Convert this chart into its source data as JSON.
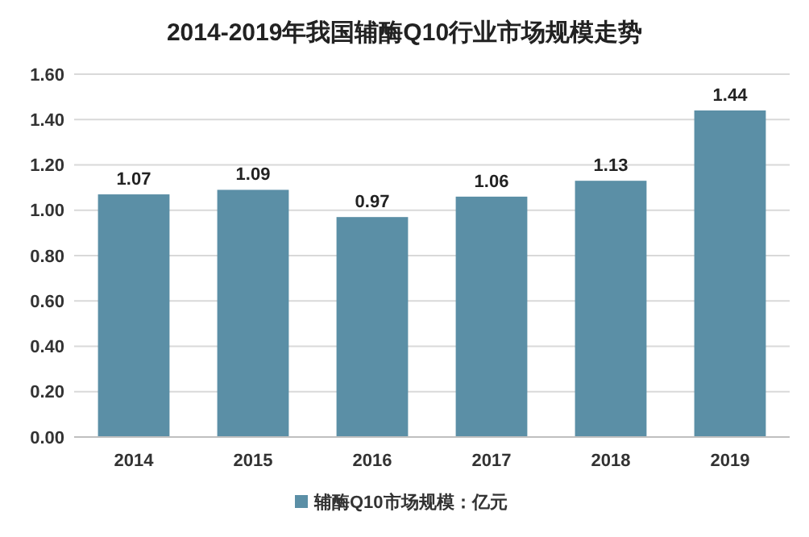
{
  "chart_data": {
    "type": "bar",
    "title": "2014-2019年我国辅酶Q10行业市场规模走势",
    "categories": [
      "2014",
      "2015",
      "2016",
      "2017",
      "2018",
      "2019"
    ],
    "series": [
      {
        "name": "辅酶Q10市场规模：亿元",
        "color": "#5b8fa6",
        "values": [
          1.07,
          1.09,
          0.97,
          1.06,
          1.13,
          1.44
        ]
      }
    ],
    "ylim": [
      0,
      1.6
    ],
    "yticks": [
      {
        "value": 0,
        "label": "0.00"
      },
      {
        "value": 0.2,
        "label": "0.20"
      },
      {
        "value": 0.4,
        "label": "0.40"
      },
      {
        "value": 0.6,
        "label": "0.60"
      },
      {
        "value": 0.8,
        "label": "0.80"
      },
      {
        "value": 1.0,
        "label": "1.00"
      },
      {
        "value": 1.2,
        "label": "1.20"
      },
      {
        "value": 1.4,
        "label": "1.40"
      },
      {
        "value": 1.6,
        "label": "1.60"
      }
    ],
    "grid": "y",
    "legend": "bottom",
    "data_labels": true
  }
}
